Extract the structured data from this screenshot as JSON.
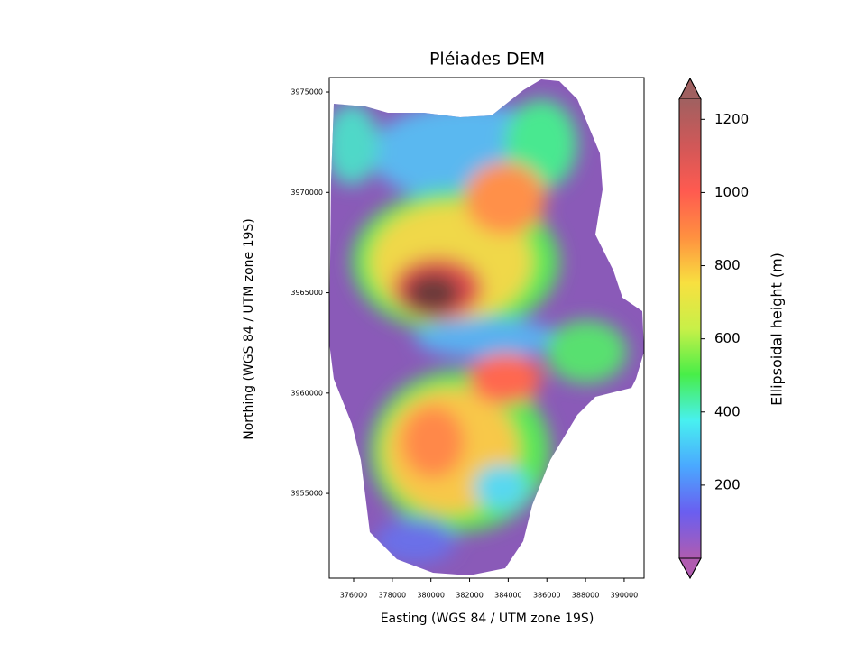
{
  "chart_data": {
    "type": "image",
    "title": "Pléiades DEM",
    "x_label": "Easting (WGS 84 / UTM zone 19S)",
    "y_label": "Northing (WGS 84 / UTM zone 19S)",
    "xlim": [
      374740,
      391030
    ],
    "ylim": [
      3950780,
      3975720
    ],
    "xticks": [
      376000,
      378000,
      380000,
      382000,
      384000,
      386000,
      388000,
      390000
    ],
    "yticks": [
      3955000,
      3960000,
      3965000,
      3970000,
      3975000
    ],
    "colorbar": {
      "label": "Ellipsoidal height (m)",
      "clim": [
        0,
        1255
      ],
      "ticks": [
        200,
        400,
        600,
        800,
        1000,
        1200
      ],
      "extend": "both",
      "colormap": [
        "#b05cb0",
        "#6a5ef0",
        "#4aa8ff",
        "#48f0f0",
        "#48ee48",
        "#c8f048",
        "#f8e040",
        "#ff9040",
        "#ff5a50",
        "#d05858",
        "#a06060"
      ]
    }
  }
}
